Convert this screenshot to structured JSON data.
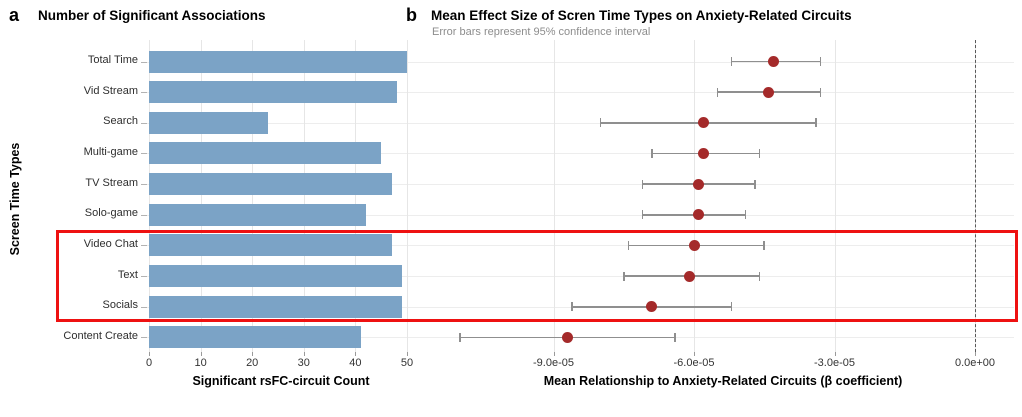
{
  "figure": {
    "panel_a": {
      "label": "a",
      "title": "Number of Significant Associations",
      "xlabel": "Significant rsFC-circuit Count",
      "ylabel": "Screen Time Types"
    },
    "panel_b": {
      "label": "b",
      "title": "Mean Effect Size of Scren Time Types on Anxiety-Related Circuits",
      "subtitle": "Error bars represent 95% confidence interval",
      "xlabel": "Mean Relationship to Anxiety-Related Circuits  (β coefficient)"
    }
  },
  "chart_data": [
    {
      "type": "bar",
      "orientation": "horizontal",
      "title": "Number of Significant Associations",
      "categories": [
        "Total Time",
        "Vid Stream",
        "Search",
        "Multi-game",
        "TV Stream",
        "Solo-game",
        "Video Chat",
        "Text",
        "Socials",
        "Content Create"
      ],
      "values": [
        50,
        48,
        23,
        45,
        47,
        42,
        47,
        49,
        49,
        41
      ],
      "xlabel": "Significant rsFC-circuit Count",
      "ylabel": "Screen Time Types",
      "x_ticks": [
        0,
        10,
        20,
        30,
        40,
        50
      ],
      "xlim": [
        0,
        53.5
      ],
      "grid": true
    },
    {
      "type": "scatter",
      "title": "Mean Effect Size of Scren Time Types on Anxiety-Related Circuits",
      "subtitle": "Error bars represent 95% confidence interval",
      "categories": [
        "Total Time",
        "Vid Stream",
        "Search",
        "Multi-game",
        "TV Stream",
        "Solo-game",
        "Video Chat",
        "Text",
        "Socials",
        "Content Create"
      ],
      "series": [
        {
          "name": "mean beta (95% CI)",
          "values": [
            -4.3e-05,
            -4.4e-05,
            -5.8e-05,
            -5.8e-05,
            -5.9e-05,
            -5.9e-05,
            -6e-05,
            -6.1e-05,
            -6.9e-05,
            -8.7e-05
          ],
          "ci_low": [
            -5.2e-05,
            -5.5e-05,
            -8e-05,
            -6.9e-05,
            -7.1e-05,
            -7.1e-05,
            -7.4e-05,
            -7.5e-05,
            -8.6e-05,
            -0.00011
          ],
          "ci_high": [
            -3.3e-05,
            -3.3e-05,
            -3.4e-05,
            -4.6e-05,
            -4.7e-05,
            -4.9e-05,
            -4.5e-05,
            -4.6e-05,
            -5.2e-05,
            -6.4e-05
          ]
        }
      ],
      "xlabel": "Mean Relationship to Anxiety-Related Circuits  (β coefficient)",
      "x_tick_values": [
        -9e-05,
        -6e-05,
        -3e-05,
        0
      ],
      "x_tick_labels": [
        "-9.0e-05",
        "-6.0e-05",
        "-3.0e-05",
        "0.0e+00"
      ],
      "xlim": [
        -0.000116,
        8e-06
      ],
      "reference_line_x": 0,
      "grid": true
    }
  ],
  "highlight_box": {
    "rows": [
      "Video Chat",
      "Text",
      "Socials"
    ],
    "color": "#ee1111"
  },
  "colors": {
    "bar_fill": "#7ba3c6",
    "point_fill": "#a42a2a",
    "error_bar": "#8f8f8f",
    "grid_major_h": "#ededed",
    "grid_major_v": "#e6e6e6",
    "dashed_line": "#595959",
    "subtitle_text": "#8d8d8d",
    "highlight": "#ee1111"
  }
}
